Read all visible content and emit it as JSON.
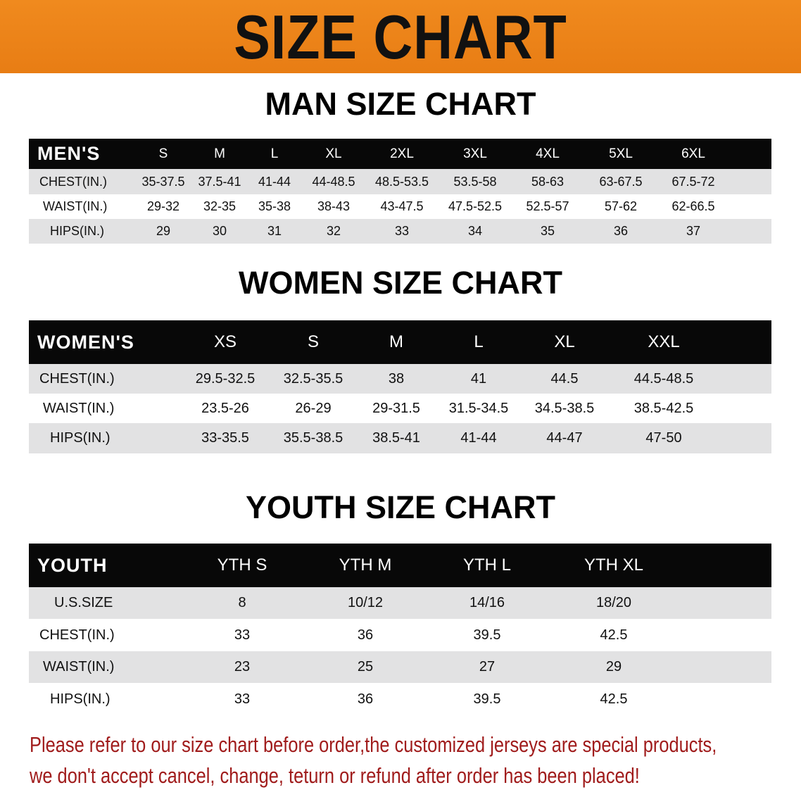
{
  "banner": {
    "title": "SIZE CHART",
    "color": "#ec8319"
  },
  "men": {
    "title": "MAN SIZE CHART",
    "header": {
      "label": "MEN'S",
      "sizes": [
        "S",
        "M",
        "L",
        "XL",
        "2XL",
        "3XL",
        "4XL",
        "5XL",
        "6XL"
      ]
    },
    "rows": [
      {
        "label": "CHEST(IN.)",
        "values": [
          "35-37.5",
          "37.5-41",
          "41-44",
          "44-48.5",
          "48.5-53.5",
          "53.5-58",
          "58-63",
          "63-67.5",
          "67.5-72"
        ]
      },
      {
        "label": "WAIST(IN.)",
        "values": [
          "29-32",
          "32-35",
          "35-38",
          "38-43",
          "43-47.5",
          "47.5-52.5",
          "52.5-57",
          "57-62",
          "62-66.5"
        ]
      },
      {
        "label": "HIPS(IN.)",
        "values": [
          "29",
          "30",
          "31",
          "32",
          "33",
          "34",
          "35",
          "36",
          "37"
        ]
      }
    ]
  },
  "women": {
    "title": "WOMEN SIZE CHART",
    "header": {
      "label": "WOMEN'S",
      "sizes": [
        "XS",
        "S",
        "M",
        "L",
        "XL",
        "XXL"
      ]
    },
    "rows": [
      {
        "label": "CHEST(IN.)",
        "values": [
          "29.5-32.5",
          "32.5-35.5",
          "38",
          "41",
          "44.5",
          "44.5-48.5"
        ]
      },
      {
        "label": "WAIST(IN.)",
        "values": [
          "23.5-26",
          "26-29",
          "29-31.5",
          "31.5-34.5",
          "34.5-38.5",
          "38.5-42.5"
        ]
      },
      {
        "label": "HIPS(IN.)",
        "values": [
          "33-35.5",
          "35.5-38.5",
          "38.5-41",
          "41-44",
          "44-47",
          "47-50"
        ]
      }
    ]
  },
  "youth": {
    "title": "YOUTH SIZE CHART",
    "header": {
      "label": "YOUTH",
      "sizes": [
        "YTH S",
        "YTH M",
        "YTH L",
        "YTH XL"
      ]
    },
    "rows": [
      {
        "label": "U.S.SIZE",
        "values": [
          "8",
          "10/12",
          "14/16",
          "18/20"
        ]
      },
      {
        "label": "CHEST(IN.)",
        "values": [
          "33",
          "36",
          "39.5",
          "42.5"
        ]
      },
      {
        "label": "WAIST(IN.)",
        "values": [
          "23",
          "25",
          "27",
          "29"
        ]
      },
      {
        "label": "HIPS(IN.)",
        "values": [
          "33",
          "36",
          "39.5",
          "42.5"
        ]
      }
    ]
  },
  "note": {
    "line1": "Please refer to our size chart before order,the customized jerseys are special products,",
    "line2": "we don't accept cancel, change, teturn or refund after order has been placed!",
    "color": "#a01c1c"
  }
}
